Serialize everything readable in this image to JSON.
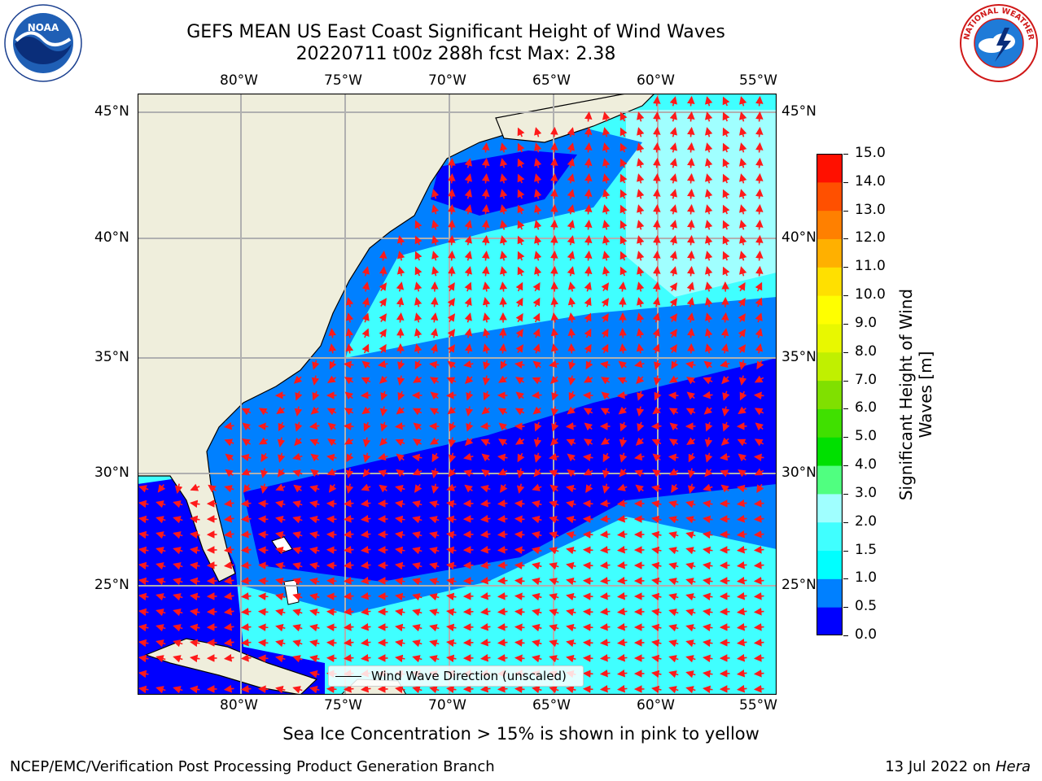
{
  "title": {
    "line1": "GEFS MEAN US East Coast Significant Height of Wind Waves",
    "line2": "20220711 t00z 288h fcst   Max: 2.38"
  },
  "map": {
    "lon_ticks": [
      "80°W",
      "75°W",
      "70°W",
      "65°W",
      "60°W",
      "55°W"
    ],
    "lat_ticks": [
      "45°N",
      "40°N",
      "35°N",
      "30°N",
      "25°N"
    ],
    "legend_label": "Wind Wave Direction (unscaled)",
    "colors": {
      "land": "#efeedc",
      "white_area": "#ffffff",
      "arrow": "#ff1a1a",
      "grid": "#b0b0b0"
    }
  },
  "colorbar": {
    "label_line1": "Significant Height of Wind",
    "label_line2": "Waves [m]",
    "ticks": [
      "0.0",
      "0.5",
      "1.0",
      "1.5",
      "2.0",
      "3.0",
      "4.0",
      "5.0",
      "6.0",
      "7.0",
      "8.0",
      "9.0",
      "10.0",
      "11.0",
      "12.0",
      "13.0",
      "14.0",
      "15.0"
    ],
    "colors": [
      "#0000ff",
      "#0080ff",
      "#00ffff",
      "#40ffff",
      "#a0ffff",
      "#50ff80",
      "#00e000",
      "#40e000",
      "#80e000",
      "#c0f000",
      "#e8f800",
      "#ffff00",
      "#ffe000",
      "#ffb000",
      "#ff8000",
      "#ff5000",
      "#ff1000"
    ]
  },
  "logos": {
    "left": {
      "icon": "noaa-logo",
      "text": "NOAA"
    },
    "right": {
      "icon": "nws-logo",
      "text": "NATIONAL WEATHER SERVICE"
    }
  },
  "note": "Sea Ice Concentration > 15% is shown in pink to yellow",
  "footer": {
    "left": "NCEP/EMC/Verification Post Processing Product Generation Branch",
    "right_date": "13 Jul 2022 on ",
    "right_host": "Hera"
  }
}
